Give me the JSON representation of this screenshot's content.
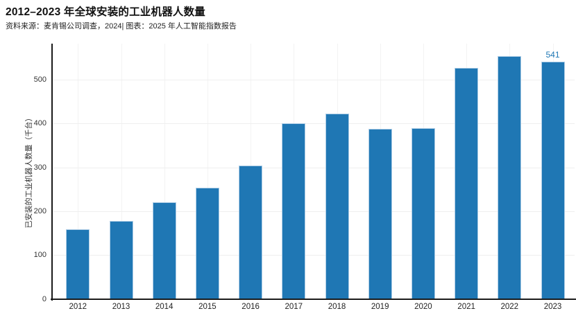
{
  "header": {
    "title": "2012–2023 年全球安装的工业机器人数量",
    "source": "资料来源：麦肯锡公司调查，2024| 图表：2025 年人工智能指数报告"
  },
  "chart_data": {
    "type": "bar",
    "title": "2012–2023 年全球安装的工业机器人数量",
    "source": "资料来源：麦肯锡公司调查，2024| 图表：2025 年人工智能指数报告",
    "categories": [
      "2012",
      "2013",
      "2014",
      "2015",
      "2016",
      "2017",
      "2018",
      "2019",
      "2020",
      "2021",
      "2022",
      "2023"
    ],
    "values": [
      159,
      178,
      221,
      254,
      304,
      400,
      423,
      387,
      390,
      526,
      553,
      541
    ],
    "xlabel": "",
    "ylabel": "已安装的工业机器人数量（千台）",
    "yticks": [
      0,
      100,
      200,
      300,
      400,
      500
    ],
    "ylim": [
      0,
      582
    ],
    "grid": true,
    "legend": "none",
    "bar_color": "#1F77B4",
    "bar_edge_color": "#AECDE6",
    "annotation": {
      "category": "2023",
      "text": "541",
      "color": "#1F77B4"
    }
  }
}
